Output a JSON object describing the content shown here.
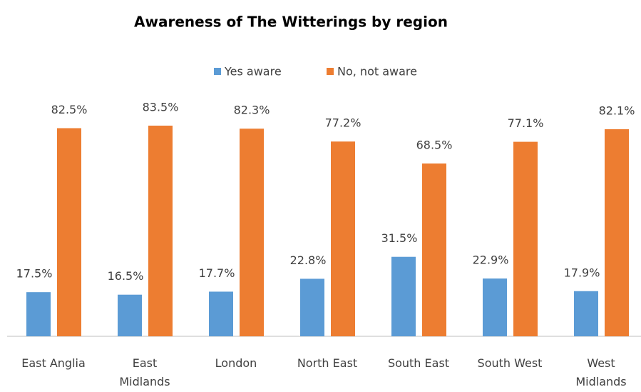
{
  "chart_data": {
    "type": "bar",
    "title": "Awareness of The Witterings by region",
    "categories": [
      "East Anglia",
      "East Midlands",
      "London",
      "North East",
      "South East",
      "South West",
      "West Midlands"
    ],
    "series": [
      {
        "name": "Yes aware",
        "color": "#5b9bd5",
        "values": [
          17.5,
          16.5,
          17.7,
          22.8,
          31.5,
          22.9,
          17.9
        ],
        "value_labels": [
          "17.5%",
          "16.5%",
          "17.7%",
          "22.8%",
          "31.5%",
          "22.9%",
          "17.9%"
        ]
      },
      {
        "name": "No, not aware",
        "color": "#ed7d31",
        "values": [
          82.5,
          83.5,
          82.3,
          77.2,
          68.5,
          77.1,
          82.1
        ],
        "value_labels": [
          "82.5%",
          "83.5%",
          "82.3%",
          "77.2%",
          "68.5%",
          "77.1%",
          "82.1%"
        ]
      }
    ],
    "ylim": [
      0,
      90
    ],
    "legend": "top"
  }
}
